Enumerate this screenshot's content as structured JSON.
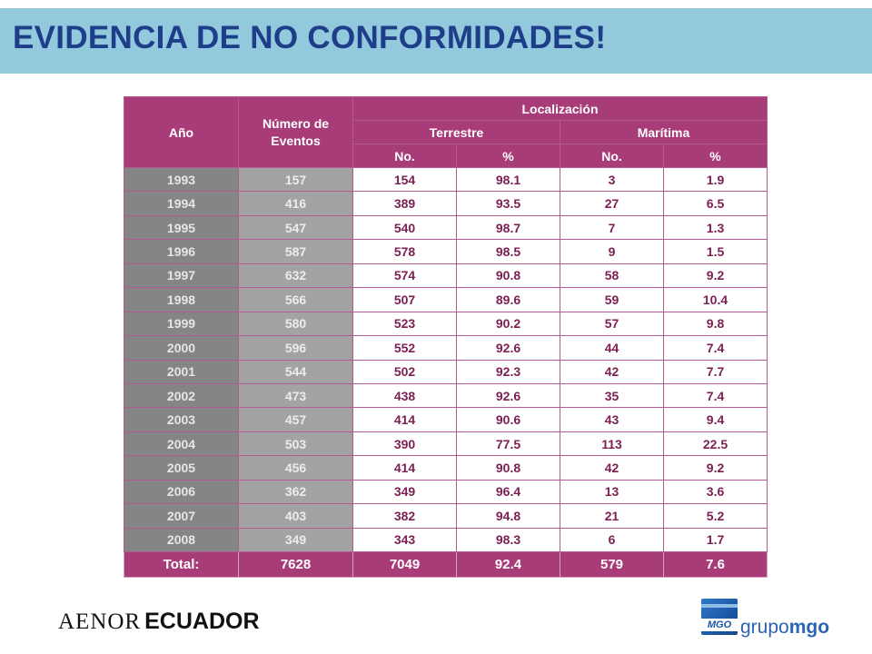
{
  "slide": {
    "title": "EVIDENCIA DE NO CONFORMIDADES!"
  },
  "table": {
    "headers": {
      "year": "Año",
      "events": "Número de Eventos",
      "location": "Localización",
      "land": "Terrestre",
      "sea": "Marítima",
      "no": "No.",
      "pct": "%"
    },
    "rows": [
      [
        "1993",
        "157",
        "154",
        "98.1",
        "3",
        "1.9"
      ],
      [
        "1994",
        "416",
        "389",
        "93.5",
        "27",
        "6.5"
      ],
      [
        "1995",
        "547",
        "540",
        "98.7",
        "7",
        "1.3"
      ],
      [
        "1996",
        "587",
        "578",
        "98.5",
        "9",
        "1.5"
      ],
      [
        "1997",
        "632",
        "574",
        "90.8",
        "58",
        "9.2"
      ],
      [
        "1998",
        "566",
        "507",
        "89.6",
        "59",
        "10.4"
      ],
      [
        "1999",
        "580",
        "523",
        "90.2",
        "57",
        "9.8"
      ],
      [
        "2000",
        "596",
        "552",
        "92.6",
        "44",
        "7.4"
      ],
      [
        "2001",
        "544",
        "502",
        "92.3",
        "42",
        "7.7"
      ],
      [
        "2002",
        "473",
        "438",
        "92.6",
        "35",
        "7.4"
      ],
      [
        "2003",
        "457",
        "414",
        "90.6",
        "43",
        "9.4"
      ],
      [
        "2004",
        "503",
        "390",
        "77.5",
        "113",
        "22.5"
      ],
      [
        "2005",
        "456",
        "414",
        "90.8",
        "42",
        "9.2"
      ],
      [
        "2006",
        "362",
        "349",
        "96.4",
        "13",
        "3.6"
      ],
      [
        "2007",
        "403",
        "382",
        "94.8",
        "21",
        "5.2"
      ],
      [
        "2008",
        "349",
        "343",
        "98.3",
        "6",
        "1.7"
      ]
    ],
    "total": [
      "Total:",
      "7628",
      "7049",
      "92.4",
      "579",
      "7.6"
    ]
  },
  "footer": {
    "aenor_part1": "AENOR",
    "aenor_part2": "ECUADOR",
    "mgo_box_label": "MGO",
    "mgo_word_light": "grupo",
    "mgo_word_bold": "mgo"
  },
  "colors": {
    "title_bar": "#92c9dc",
    "title_text": "#1f3e8a",
    "header_bg": "#a83c78",
    "year_bg": "#858585",
    "events_bg": "#a3a3a3",
    "value_text": "#7b1f52"
  }
}
